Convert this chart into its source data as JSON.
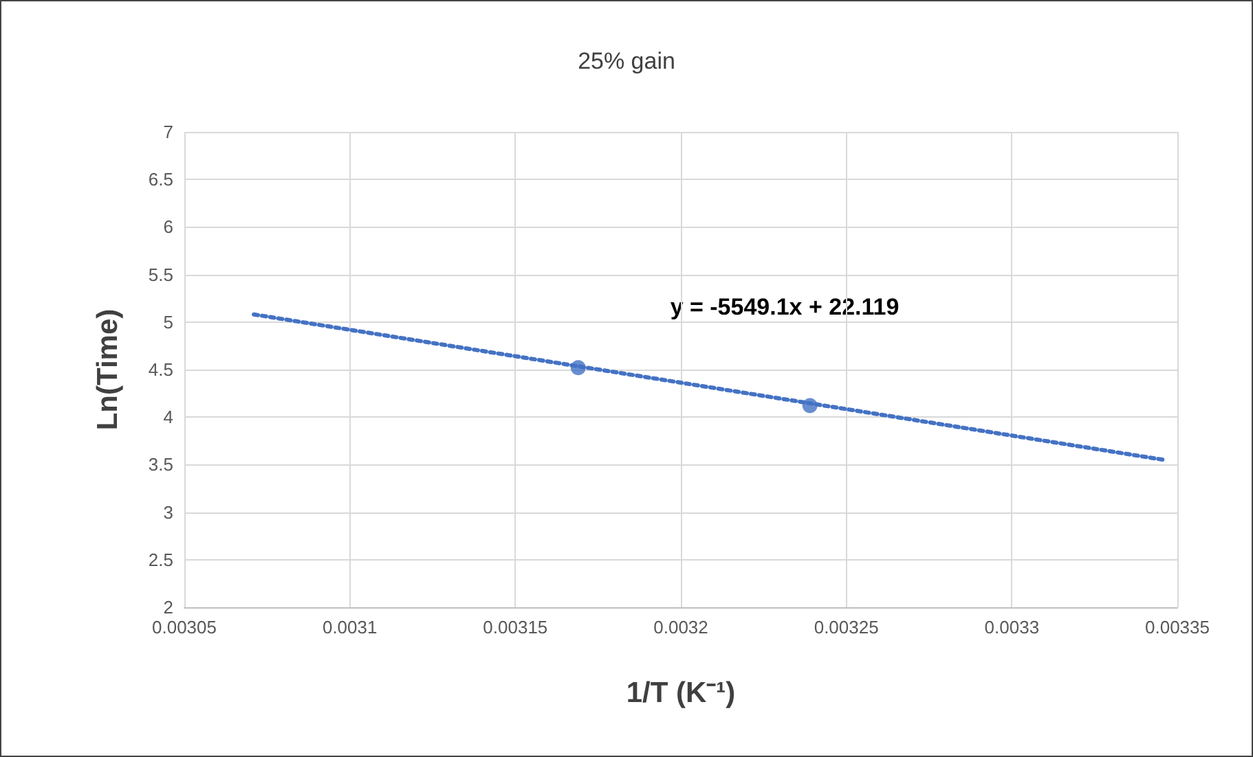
{
  "chart_data": {
    "type": "scatter",
    "title": "25% gain",
    "xlabel": "1/T (K⁻¹)",
    "ylabel": "Ln(Time)",
    "annotations": [
      "y = -5549.1x + 22.119"
    ],
    "series": [
      {
        "color": "#4472c4",
        "marker": "circle",
        "x": [
          0.003169,
          0.003239
        ],
        "values": [
          4.52,
          4.12
        ]
      },
      {
        "type": "line",
        "color": "#4472c4",
        "marker": "none",
        "line_style": "dotted",
        "x": [
          0.003071,
          0.003346
        ],
        "values": [
          5.08,
          3.55
        ]
      }
    ],
    "xlim": [
      0.00305,
      0.00335
    ],
    "xticks": [
      0.00305,
      0.0031,
      0.00315,
      0.0032,
      0.00325,
      0.0033,
      0.00335
    ],
    "ylim": [
      2,
      7
    ],
    "yticks": [
      2,
      2.5,
      3,
      3.5,
      4,
      4.5,
      5,
      5.5,
      6,
      6.5,
      7
    ],
    "grid": true
  }
}
